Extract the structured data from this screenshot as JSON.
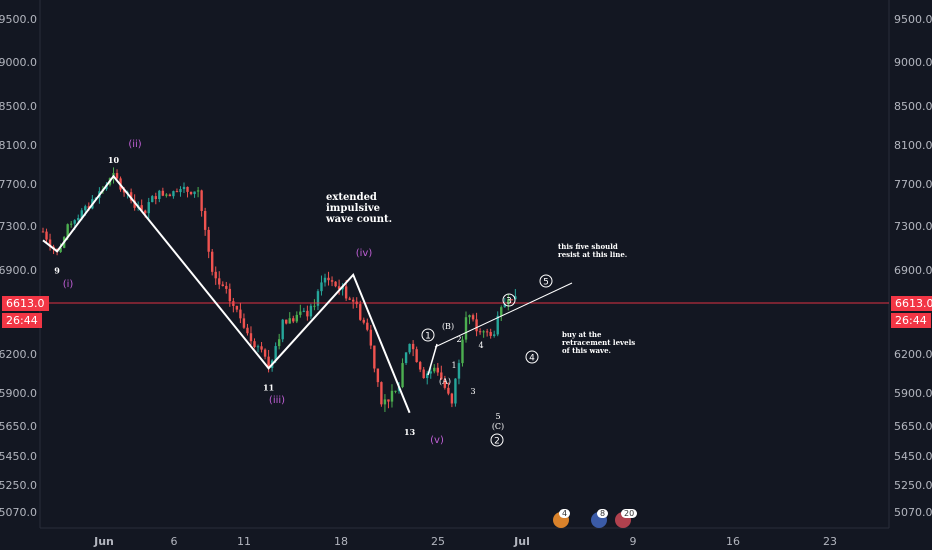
{
  "chart_data": {
    "type": "candlestick",
    "y_ticks": [
      5070.0,
      5250.0,
      5450.0,
      5650.0,
      5900.0,
      6200.0,
      6900.0,
      7300.0,
      7700.0,
      8100.0,
      8500.0,
      9000.0,
      9500.0
    ],
    "x_ticks": [
      "Jun",
      "6",
      "11",
      "18",
      "25",
      "Jul",
      "9",
      "16",
      "23"
    ],
    "last_price": "6613.0",
    "countdown": "26:44",
    "wave_path": [
      {
        "label": "",
        "date": "May 29",
        "price": 7170
      },
      {
        "label": "9",
        "date": "May 30",
        "price": 7070
      },
      {
        "label": "10",
        "date": "Jun 3",
        "price": 7780
      },
      {
        "label": "11",
        "date": "Jun 14",
        "price": 6090
      },
      {
        "label": "",
        "date": "Jun 20",
        "price": 6860
      },
      {
        "label": "13",
        "date": "Jun 24",
        "price": 5750
      }
    ],
    "wave_labels": {
      "i": "(i)",
      "ii": "(ii)",
      "iii": "(iii)",
      "iv": "(iv)",
      "v": "(v)"
    },
    "minor_labels": [
      "1",
      "2",
      "3",
      "4",
      "5",
      "(A)",
      "(B)",
      "(C)"
    ],
    "circled_labels": [
      "1",
      "2",
      "3",
      "4",
      "5"
    ],
    "resistance_line": {
      "from": {
        "date": "Jun 25",
        "price": 6250
      },
      "to": {
        "date": "Jul 2",
        "price": 6800
      }
    },
    "annotations": {
      "extended": "extended\nimpulsive\nwave count.",
      "resist": "this five should\nresist at this line.",
      "buy": "buy at the\nretracement levels\nof this wave."
    },
    "colors": {
      "up": "#26a69a",
      "up_alt": "#4caf50",
      "down": "#ef5350",
      "wave": "#ffffff",
      "purple": "#c05fd6",
      "price_line": "#f23645"
    }
  },
  "events": [
    {
      "badge": "4"
    },
    {
      "badge": "8"
    },
    {
      "badge": "20"
    }
  ]
}
